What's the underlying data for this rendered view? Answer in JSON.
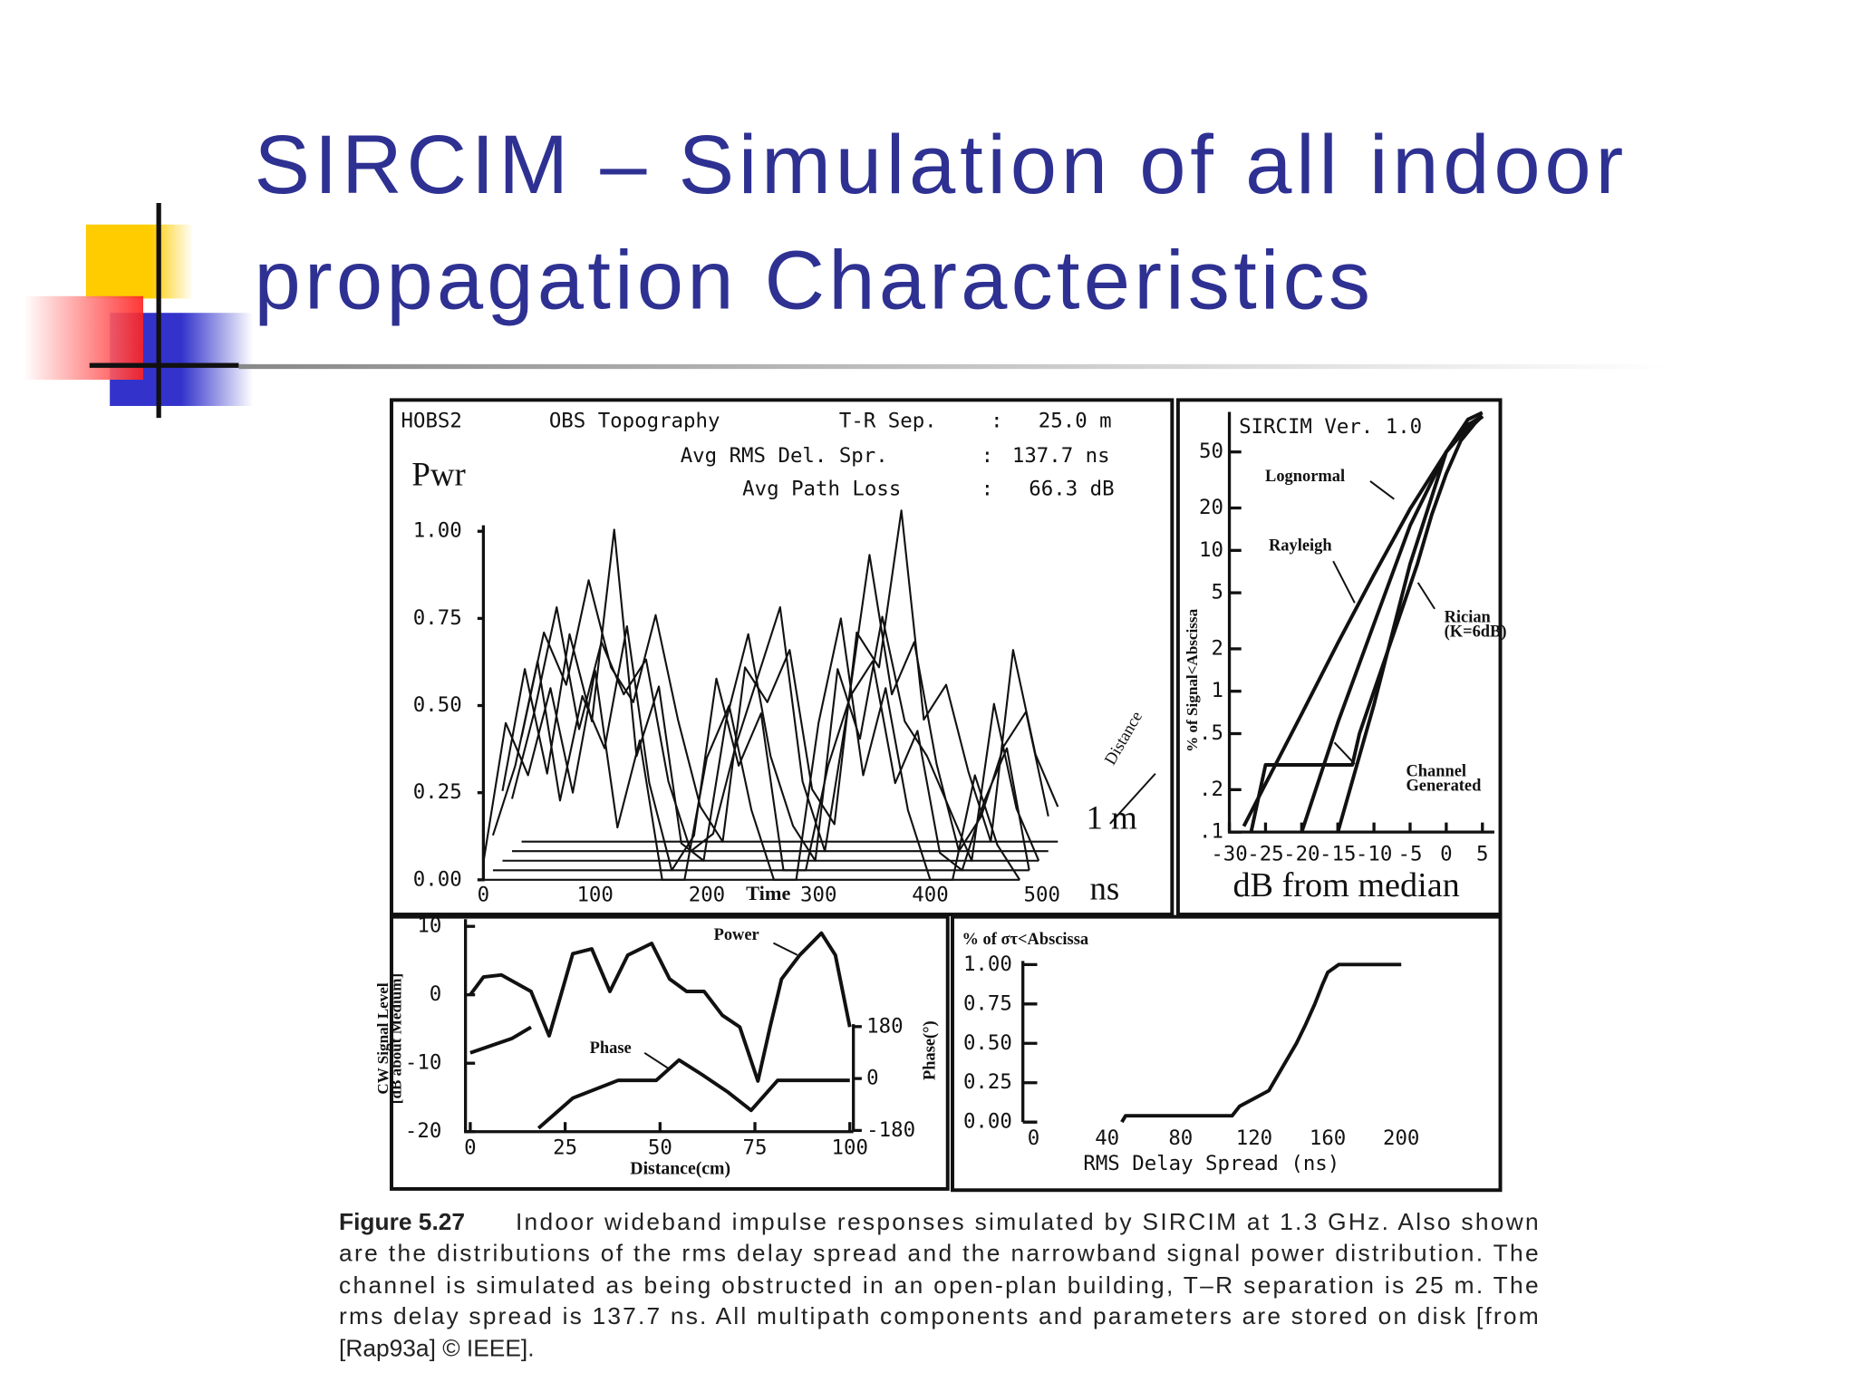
{
  "title_lines": [
    "SIRCIM – Simulation of all indoor",
    "propagation Characteristics"
  ],
  "chart_data": [
    {
      "type": "line",
      "annotations": [
        "HOBS2",
        "OBS Topography",
        "T-R Sep.",
        ":",
        "25.0 m",
        "Avg RMS Del. Spr.",
        ":",
        "137.7 ns",
        "Avg Path Loss",
        ":",
        "66.3 dB"
      ],
      "ylabel": "Pwr",
      "xlabel": "Time",
      "x_unit": "ns",
      "depth_label": "Distance",
      "depth_scale": "1 m",
      "xlim": [
        0,
        500
      ],
      "ylim": [
        0,
        1
      ],
      "xticks": [
        0,
        100,
        200,
        300,
        400,
        500
      ],
      "yticks": [
        {
          "value": 0,
          "label": "0.00"
        },
        {
          "value": 0.25,
          "label": "0.25"
        },
        {
          "value": 0.5,
          "label": "0.50"
        },
        {
          "value": 0.75,
          "label": "0.75"
        },
        {
          "value": 1,
          "label": "1.00"
        }
      ],
      "x": [
        0,
        20,
        40,
        60,
        80,
        100,
        120,
        140,
        160,
        180,
        200,
        220,
        240,
        260,
        280,
        300,
        320,
        340,
        360,
        380,
        400,
        420,
        440,
        460,
        480
      ],
      "series": [
        {
          "color": "#111111",
          "values": [
            0.05,
            0.45,
            0.3,
            0.55,
            0.25,
            0.6,
            0.15,
            0.4,
            0.0,
            0.0,
            0.35,
            0.5,
            0.2,
            0.0,
            0.0,
            0.45,
            0.75,
            0.3,
            0.55,
            0.2,
            0.0,
            0.0,
            0.3,
            0.1,
            0.0
          ]
        },
        {
          "color": "#111111",
          "values": [
            0.1,
            0.3,
            0.6,
            0.2,
            0.5,
            0.35,
            0.7,
            0.25,
            0.0,
            0.1,
            0.55,
            0.3,
            0.45,
            0.0,
            0.0,
            0.3,
            0.5,
            0.6,
            0.25,
            0.4,
            0.05,
            0.0,
            0.2,
            0.35,
            0.0
          ]
        },
        {
          "color": "#111111",
          "values": [
            0.2,
            0.55,
            0.25,
            0.65,
            0.4,
            0.95,
            0.3,
            0.5,
            0.05,
            0.0,
            0.4,
            0.65,
            0.3,
            0.1,
            0.0,
            0.55,
            0.35,
            0.7,
            0.4,
            0.3,
            0.15,
            0.0,
            0.45,
            0.15,
            0.0
          ]
        },
        {
          "color": "#111111",
          "values": [
            0.15,
            0.4,
            0.7,
            0.35,
            0.6,
            0.45,
            0.55,
            0.2,
            0.0,
            0.05,
            0.3,
            0.5,
            0.7,
            0.2,
            0.0,
            0.4,
            0.85,
            0.45,
            0.6,
            0.25,
            0.0,
            0.1,
            0.3,
            0.4,
            0.1
          ]
        },
        {
          "color": "#111111",
          "values": [
            0.3,
            0.6,
            0.45,
            0.75,
            0.5,
            0.4,
            0.65,
            0.35,
            0.1,
            0.0,
            0.5,
            0.4,
            0.55,
            0.15,
            0.05,
            0.6,
            0.5,
            0.95,
            0.35,
            0.45,
            0.2,
            0.0,
            0.55,
            0.25,
            0.1
          ]
        }
      ]
    },
    {
      "type": "line",
      "title": "SIRCIM Ver. 1.0",
      "ylabel": "% of Signal<Abscissa",
      "xlabel": "dB from median",
      "yscale": "log",
      "xlim": [
        -30,
        5
      ],
      "ylim": [
        0.1,
        100
      ],
      "xticks": [
        -30,
        -25,
        -20,
        -15,
        -10,
        -5,
        0,
        5
      ],
      "yticks": [
        {
          "value": 0.1,
          "label": ".1"
        },
        {
          "value": 0.2,
          "label": ".2"
        },
        {
          "value": 0.5,
          "label": ".5"
        },
        1,
        2,
        5,
        10,
        20,
        50
      ],
      "series": [
        {
          "label": [
            "Lognormal"
          ],
          "color": "#111111",
          "x": [
            -20,
            -15,
            -10,
            -5,
            0,
            3,
            5
          ],
          "values": [
            0.1,
            0.6,
            3,
            15,
            50,
            78,
            90
          ]
        },
        {
          "label": [
            "Rayleigh"
          ],
          "color": "#111111",
          "x": [
            -28,
            -25,
            -20,
            -15,
            -10,
            -5,
            0,
            3,
            5
          ],
          "values": [
            0.11,
            0.22,
            0.69,
            2.2,
            6.7,
            19.7,
            50,
            75,
            89
          ]
        },
        {
          "label": [
            "Rician",
            "(K=6dB)"
          ],
          "color": "#111111",
          "x": [
            -15,
            -10,
            -5,
            0,
            3,
            5
          ],
          "values": [
            0.1,
            0.8,
            8,
            50,
            85,
            95
          ]
        },
        {
          "label": [
            "Channel",
            "Generated"
          ],
          "color": "#111111",
          "x": [
            -27,
            -25,
            -13,
            -12,
            -10,
            -8,
            -6,
            -4,
            -2,
            0,
            2,
            4,
            5
          ],
          "values": [
            0.1,
            0.3,
            0.3,
            0.5,
            1,
            2,
            4,
            8,
            18,
            35,
            60,
            80,
            90
          ]
        }
      ]
    },
    {
      "type": "line",
      "ylabel_lines": [
        "CW Signal Level",
        "[dB about Medium]"
      ],
      "y2label": "Phase(°)",
      "xlabel": "Distance(cm)",
      "xlim": [
        0,
        100
      ],
      "ylim": [
        -20,
        10
      ],
      "y2lim": [
        -180,
        180
      ],
      "xticks": [
        0,
        25,
        50,
        75,
        100
      ],
      "yticks": [
        -20,
        -10,
        0,
        10
      ],
      "y2ticks": [
        -180,
        0,
        180
      ],
      "series": [
        {
          "label": [
            "Power"
          ],
          "color": "#111111",
          "x": [
            0,
            3.5,
            8.2,
            16,
            20.8,
            27,
            32,
            36.8,
            41.5,
            47.8,
            52.5,
            57,
            61.6,
            66.4,
            71,
            75.8,
            79,
            82,
            86.8,
            92.5,
            96.2,
            100
          ],
          "values": [
            0,
            2.6,
            2.9,
            0.5,
            -6,
            6,
            6.7,
            0.5,
            5.8,
            7.5,
            2.3,
            0.5,
            0.5,
            -3,
            -4.7,
            -12.6,
            -4.7,
            2.3,
            5.8,
            9,
            5.8,
            -4.7
          ]
        },
        {
          "label": [
            "Phase"
          ],
          "color": "#111111",
          "axis": "y2",
          "x": [
            0,
            11,
            16,
            17,
            18,
            27,
            39,
            49,
            55,
            61,
            68,
            74,
            81,
            90,
            100
          ],
          "values": [
            89,
            139,
            178,
            null,
            -172,
            -68,
            -6,
            -6,
            64,
            14,
            -48,
            -110,
            -6,
            -6,
            -6
          ]
        }
      ]
    },
    {
      "type": "line",
      "ylabel": "% of στ<Abscissa",
      "xlabel": "RMS Delay Spread (ns)",
      "xlim": [
        0,
        200
      ],
      "ylim": [
        0,
        1
      ],
      "xticks": [
        0,
        40,
        80,
        120,
        160,
        200
      ],
      "yticks": [
        {
          "value": 0,
          "label": "0.00"
        },
        {
          "value": 0.25,
          "label": "0.25"
        },
        {
          "value": 0.5,
          "label": "0.50"
        },
        {
          "value": 0.75,
          "label": "0.75"
        },
        {
          "value": 1,
          "label": "1.00"
        }
      ],
      "series": [
        {
          "color": "#111111",
          "x": [
            48,
            50,
            108,
            112,
            120,
            128,
            133,
            138,
            143,
            148,
            153,
            157,
            160,
            166,
            200
          ],
          "values": [
            0,
            0.04,
            0.04,
            0.1,
            0.15,
            0.2,
            0.3,
            0.4,
            0.5,
            0.62,
            0.75,
            0.87,
            0.95,
            1,
            1
          ]
        }
      ]
    }
  ],
  "caption": {
    "label": "Figure 5.27",
    "lines": [
      "Indoor wideband impulse responses simulated by SIRCIM at 1.3 GHz. Also shown",
      "are the distributions of the rms delay spread and the narrowband signal power distribution. The",
      "channel is simulated as being obstructed in an open-plan building, T–R separation is 25 m. The",
      "rms delay spread is 137.7 ns. All multipath components and parameters are stored on disk [from",
      "[Rap93a] © IEEE]."
    ]
  }
}
